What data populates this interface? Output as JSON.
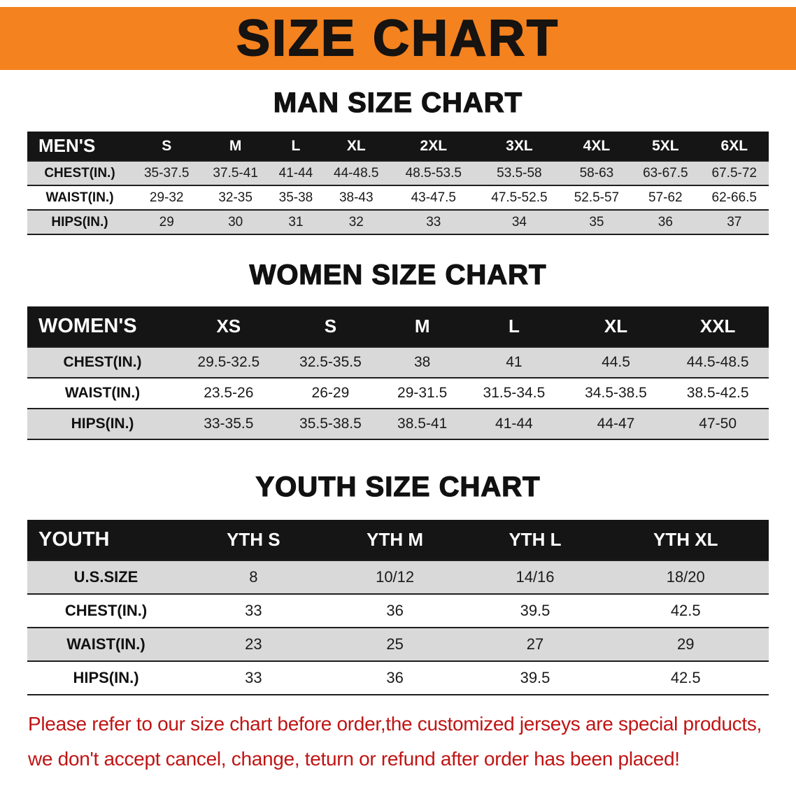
{
  "banner": {
    "title": "SIZE CHART"
  },
  "sections": [
    {
      "heading": "MAN SIZE CHART",
      "table": {
        "header": [
          "MEN'S",
          "S",
          "M",
          "L",
          "XL",
          "2XL",
          "3XL",
          "4XL",
          "5XL",
          "6XL"
        ],
        "rows": [
          [
            "CHEST(IN.)",
            "35-37.5",
            "37.5-41",
            "41-44",
            "44-48.5",
            "48.5-53.5",
            "53.5-58",
            "58-63",
            "63-67.5",
            "67.5-72"
          ],
          [
            "WAIST(IN.)",
            "29-32",
            "32-35",
            "35-38",
            "38-43",
            "43-47.5",
            "47.5-52.5",
            "52.5-57",
            "57-62",
            "62-66.5"
          ],
          [
            "HIPS(IN.)",
            "29",
            "30",
            "31",
            "32",
            "33",
            "34",
            "35",
            "36",
            "37"
          ]
        ]
      }
    },
    {
      "heading": "WOMEN SIZE CHART",
      "table": {
        "header": [
          "WOMEN'S",
          "XS",
          "S",
          "M",
          "L",
          "XL",
          "XXL"
        ],
        "rows": [
          [
            "CHEST(IN.)",
            "29.5-32.5",
            "32.5-35.5",
            "38",
            "41",
            "44.5",
            "44.5-48.5"
          ],
          [
            "WAIST(IN.)",
            "23.5-26",
            "26-29",
            "29-31.5",
            "31.5-34.5",
            "34.5-38.5",
            "38.5-42.5"
          ],
          [
            "HIPS(IN.)",
            "33-35.5",
            "35.5-38.5",
            "38.5-41",
            "41-44",
            "44-47",
            "47-50"
          ]
        ]
      }
    },
    {
      "heading": "YOUTH SIZE CHART",
      "table": {
        "header": [
          "YOUTH",
          "YTH S",
          "YTH M",
          "YTH L",
          "YTH XL"
        ],
        "rows": [
          [
            "U.S.SIZE",
            "8",
            "10/12",
            "14/16",
            "18/20"
          ],
          [
            "CHEST(IN.)",
            "33",
            "36",
            "39.5",
            "42.5"
          ],
          [
            "WAIST(IN.)",
            "23",
            "25",
            "27",
            "29"
          ],
          [
            "HIPS(IN.)",
            "33",
            "36",
            "39.5",
            "42.5"
          ]
        ]
      }
    }
  ],
  "disclaimer": {
    "line1": "Please refer to our size chart before order,the customized jerseys are special products,",
    "line2": "we don't accept cancel, change, teturn or refund after order has been placed!"
  },
  "colors": {
    "banner_bg": "#F4821F",
    "header_bg": "#151515",
    "row_alt_bg": "#D9D9D9",
    "row_bg": "#FFFFFF",
    "rule_color": "#1E1E1E",
    "text_color": "#1A1A1A",
    "disclaimer_color": "#C01414"
  }
}
